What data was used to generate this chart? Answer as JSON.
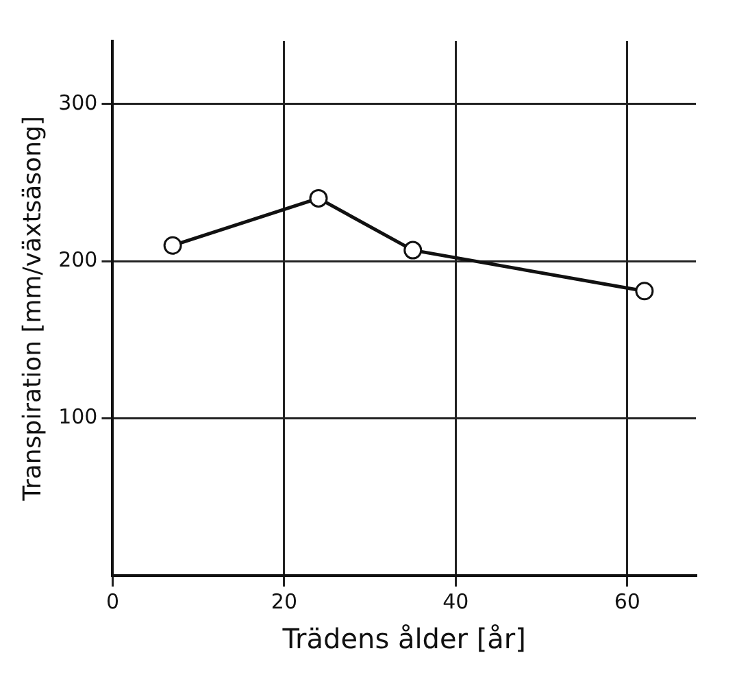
{
  "chart_data": {
    "type": "line",
    "xlabel": "Trädens ålder [år]",
    "ylabel": "Transpiration [mm/växtsäsong]",
    "x": [
      7,
      24,
      35,
      62
    ],
    "series": [
      {
        "color": "#111111",
        "values": [
          210,
          240,
          207,
          181
        ]
      }
    ],
    "xlim": [
      0,
      68
    ],
    "xticks": [
      0,
      20,
      40,
      60
    ],
    "ylim": [
      0,
      340
    ],
    "yticks": [
      100,
      200,
      300
    ],
    "grid": true,
    "marker": "circle",
    "line_style": "solid"
  }
}
